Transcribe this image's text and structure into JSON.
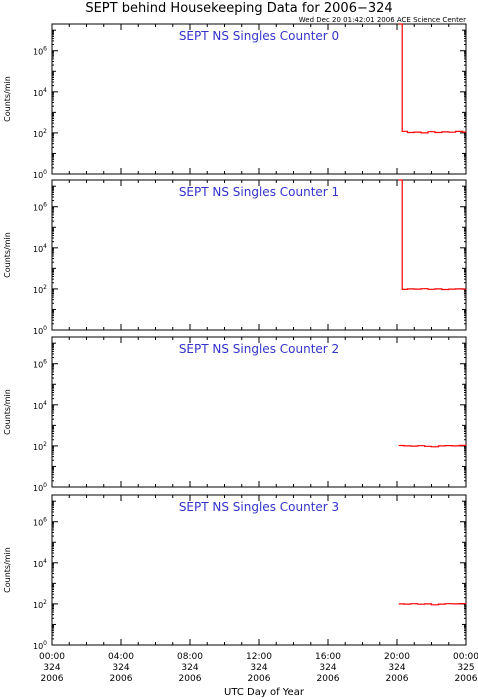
{
  "header": {
    "title": "SEPT behind Housekeeping Data for 2006−324",
    "stamp": "Wed Dec 20 01:42:01 2006 ACE Science Center"
  },
  "xaxis": {
    "label": "UTC Day of Year",
    "ticks": [
      {
        "time": "00:00",
        "doy": "324",
        "year": "2006"
      },
      {
        "time": "04:00",
        "doy": "324",
        "year": "2006"
      },
      {
        "time": "08:00",
        "doy": "324",
        "year": "2006"
      },
      {
        "time": "12:00",
        "doy": "324",
        "year": "2006"
      },
      {
        "time": "16:00",
        "doy": "324",
        "year": "2006"
      },
      {
        "time": "20:00",
        "doy": "324",
        "year": "2006"
      },
      {
        "time": "00:00",
        "doy": "325",
        "year": "2006"
      }
    ]
  },
  "colors": {
    "title": "#000000",
    "panel_title": "#3333cc",
    "data": "#ff0000",
    "axes": "#000000"
  },
  "chart_data": [
    {
      "type": "line",
      "title": "SEPT NS Singles Counter 0",
      "ylabel": "Counts/min",
      "yscale": "log",
      "ylim": [
        1,
        20000000
      ],
      "xlim_hours": [
        0,
        24
      ],
      "yticks": [
        {
          "exp": 0,
          "label": "10",
          "sup": "0"
        },
        {
          "exp": 2,
          "label": "10",
          "sup": "2"
        },
        {
          "exp": 4,
          "label": "10",
          "sup": "4"
        },
        {
          "exp": 6,
          "label": "10",
          "sup": "6"
        }
      ],
      "series": [
        {
          "x_hours": [
            20.1,
            20.2,
            20.3,
            20.6,
            21.0,
            21.4,
            21.8,
            22.2,
            22.6,
            23.0,
            23.4,
            23.8,
            24.0
          ],
          "y": [
            20000000,
            20000000,
            120,
            105,
            110,
            100,
            115,
            105,
            112,
            108,
            118,
            110,
            105
          ]
        }
      ]
    },
    {
      "type": "line",
      "title": "SEPT NS Singles Counter 1",
      "ylabel": "Counts/min",
      "yscale": "log",
      "ylim": [
        1,
        20000000
      ],
      "xlim_hours": [
        0,
        24
      ],
      "yticks": [
        {
          "exp": 0,
          "label": "10",
          "sup": "0"
        },
        {
          "exp": 2,
          "label": "10",
          "sup": "2"
        },
        {
          "exp": 4,
          "label": "10",
          "sup": "4"
        },
        {
          "exp": 6,
          "label": "10",
          "sup": "6"
        }
      ],
      "series": [
        {
          "x_hours": [
            20.1,
            20.2,
            20.3,
            20.6,
            21.0,
            21.4,
            21.8,
            22.2,
            22.6,
            23.0,
            23.4,
            23.8,
            24.0
          ],
          "y": [
            20000000,
            20000000,
            95,
            100,
            98,
            102,
            96,
            100,
            94,
            98,
            100,
            97,
            100
          ]
        }
      ]
    },
    {
      "type": "line",
      "title": "SEPT NS Singles Counter 2",
      "ylabel": "Counts/min",
      "yscale": "log",
      "ylim": [
        1,
        20000000
      ],
      "xlim_hours": [
        0,
        24
      ],
      "yticks": [
        {
          "exp": 0,
          "label": "10",
          "sup": "0"
        },
        {
          "exp": 2,
          "label": "10",
          "sup": "2"
        },
        {
          "exp": 4,
          "label": "10",
          "sup": "4"
        },
        {
          "exp": 6,
          "label": "10",
          "sup": "6"
        }
      ],
      "series": [
        {
          "x_hours": [
            20.1,
            20.4,
            20.8,
            21.2,
            21.6,
            22.0,
            22.4,
            22.8,
            23.2,
            23.6,
            24.0
          ],
          "y": [
            105,
            100,
            98,
            102,
            96,
            90,
            100,
            104,
            100,
            106,
            110
          ]
        }
      ]
    },
    {
      "type": "line",
      "title": "SEPT NS Singles Counter 3",
      "ylabel": "Counts/min",
      "yscale": "log",
      "ylim": [
        1,
        20000000
      ],
      "xlim_hours": [
        0,
        24
      ],
      "yticks": [
        {
          "exp": 0,
          "label": "10",
          "sup": "0"
        },
        {
          "exp": 2,
          "label": "10",
          "sup": "2"
        },
        {
          "exp": 4,
          "label": "10",
          "sup": "4"
        },
        {
          "exp": 6,
          "label": "10",
          "sup": "6"
        }
      ],
      "series": [
        {
          "x_hours": [
            20.1,
            20.4,
            20.8,
            21.2,
            21.6,
            22.0,
            22.4,
            22.8,
            23.2,
            23.6,
            24.0
          ],
          "y": [
            100,
            98,
            102,
            97,
            100,
            90,
            98,
            102,
            100,
            104,
            100
          ]
        }
      ]
    }
  ]
}
